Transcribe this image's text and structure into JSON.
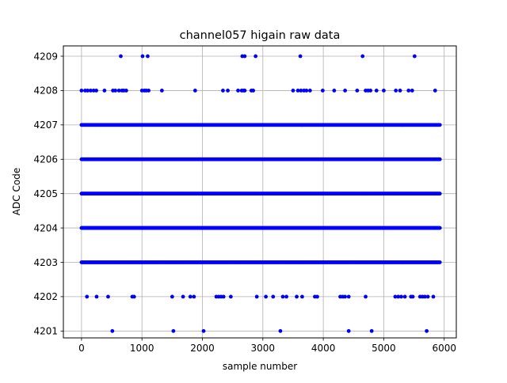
{
  "chart_data": {
    "type": "scatter",
    "title": "channel057 higain raw data",
    "xlabel": "sample number",
    "ylabel": "ADC Code",
    "xlim": [
      -300,
      6200
    ],
    "ylim": [
      4200.8,
      4209.3
    ],
    "xticks": [
      0,
      1000,
      2000,
      3000,
      4000,
      5000,
      6000
    ],
    "xtick_labels": [
      "0",
      "1000",
      "2000",
      "3000",
      "4000",
      "5000",
      "6000"
    ],
    "yticks": [
      4201,
      4202,
      4203,
      4204,
      4205,
      4206,
      4207,
      4208,
      4209
    ],
    "ytick_labels": [
      "4201",
      "4202",
      "4203",
      "4204",
      "4205",
      "4206",
      "4207",
      "4208",
      "4209"
    ],
    "grid": true,
    "marker_color": "#0000ff",
    "x_range_of_samples": [
      0,
      5930
    ],
    "series": [
      {
        "values_by_level": [
          {
            "y": 4209,
            "x": [
              650,
              1010,
              1095,
              2660,
              2700,
              2880,
              3620,
              4650,
              5510
            ]
          },
          {
            "y": 4208,
            "x": [
              0,
              60,
              100,
              150,
              200,
              245,
              380,
              520,
              560,
              620,
              670,
              700,
              740,
              1000,
              1040,
              1070,
              1110,
              1330,
              1880,
              2340,
              2420,
              2590,
              2650,
              2680,
              2700,
              2810,
              2840,
              3500,
              3580,
              3630,
              3680,
              3720,
              3780,
              3990,
              4180,
              4360,
              4560,
              4700,
              4740,
              4780,
              4880,
              5000,
              5200,
              5270,
              5410,
              5470,
              5850
            ]
          },
          {
            "y": 4207,
            "x_dense": [
              0,
              5930
            ]
          },
          {
            "y": 4206,
            "x_dense": [
              0,
              5930
            ]
          },
          {
            "y": 4205,
            "x_dense": [
              0,
              5930
            ]
          },
          {
            "y": 4204,
            "x_dense": [
              0,
              5930
            ]
          },
          {
            "y": 4203,
            "x_dense": [
              0,
              5930
            ]
          },
          {
            "y": 4202,
            "x": [
              90,
              250,
              440,
              840,
              870,
              1500,
              1680,
              1800,
              1860,
              2230,
              2270,
              2310,
              2350,
              2470,
              2900,
              3050,
              3170,
              3330,
              3390,
              3560,
              3650,
              3860,
              3900,
              4280,
              4320,
              4360,
              4420,
              4700,
              5190,
              5240,
              5290,
              5350,
              5450,
              5480,
              5600,
              5640,
              5680,
              5730,
              5820
            ]
          },
          {
            "y": 4201,
            "x": [
              510,
              1520,
              2020,
              3290,
              4420,
              4800,
              5710
            ]
          }
        ]
      }
    ]
  }
}
